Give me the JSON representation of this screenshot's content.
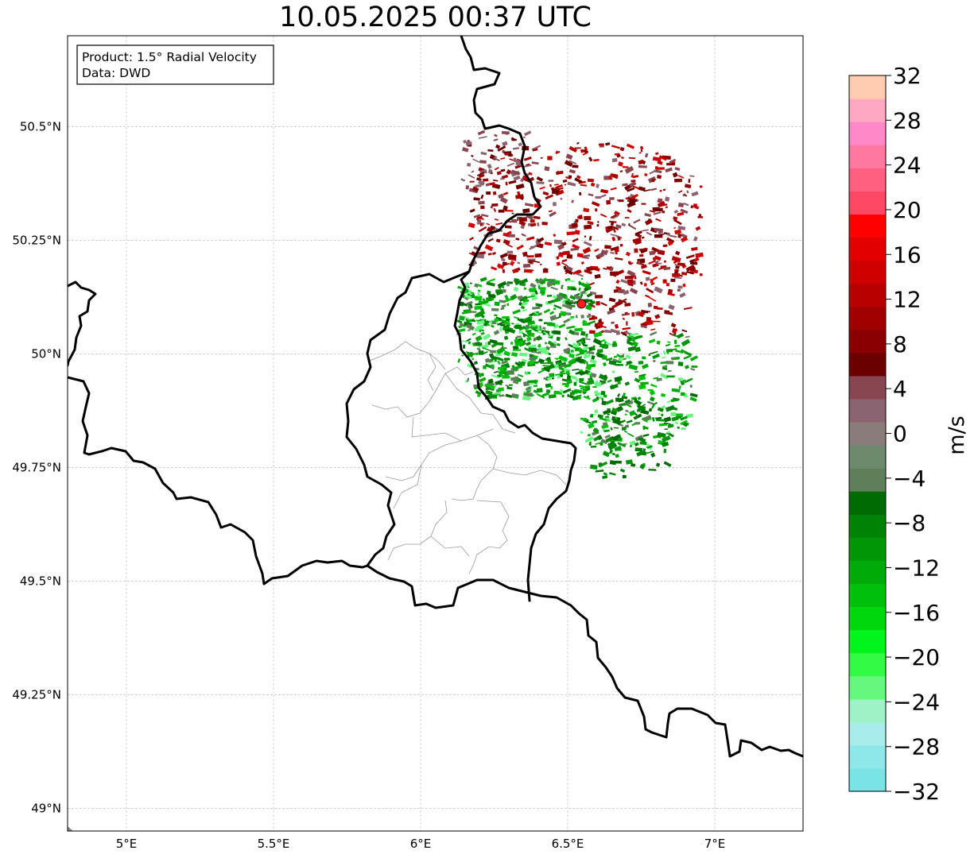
{
  "title": "10.05.2025 00:37 UTC",
  "infobox": {
    "line1": "Product: 1.5° Radial Velocity",
    "line2": "Data: DWD"
  },
  "map": {
    "lon_range": [
      4.8,
      7.3
    ],
    "lat_range": [
      48.95,
      50.7
    ],
    "lon_ticks": [
      {
        "value": 5.0,
        "label": "5°E"
      },
      {
        "value": 5.5,
        "label": "5.5°E"
      },
      {
        "value": 6.0,
        "label": "6°E"
      },
      {
        "value": 6.5,
        "label": "6.5°E"
      },
      {
        "value": 7.0,
        "label": "7°E"
      }
    ],
    "lat_ticks": [
      {
        "value": 49.0,
        "label": "49°N"
      },
      {
        "value": 49.25,
        "label": "49.25°N"
      },
      {
        "value": 49.5,
        "label": "49.5°N"
      },
      {
        "value": 49.75,
        "label": "49.75°N"
      },
      {
        "value": 50.0,
        "label": "50°N"
      },
      {
        "value": 50.25,
        "label": "50.25°N"
      },
      {
        "value": 50.5,
        "label": "50.5°N"
      }
    ],
    "radar_site": {
      "lon": 6.547,
      "lat": 50.11,
      "color": "#ff1a1a"
    }
  },
  "colorbar": {
    "label": "m/s",
    "min": -32,
    "max": 32,
    "ticks": [
      {
        "value": 32,
        "label": "32"
      },
      {
        "value": 28,
        "label": "28"
      },
      {
        "value": 24,
        "label": "24"
      },
      {
        "value": 20,
        "label": "20"
      },
      {
        "value": 16,
        "label": "16"
      },
      {
        "value": 12,
        "label": "12"
      },
      {
        "value": 8,
        "label": "8"
      },
      {
        "value": 4,
        "label": "4"
      },
      {
        "value": 0,
        "label": "0"
      },
      {
        "value": -4,
        "label": "−4"
      },
      {
        "value": -8,
        "label": "−8"
      },
      {
        "value": -12,
        "label": "−12"
      },
      {
        "value": -16,
        "label": "−16"
      },
      {
        "value": -20,
        "label": "−20"
      },
      {
        "value": -24,
        "label": "−24"
      },
      {
        "value": -28,
        "label": "−28"
      },
      {
        "value": -32,
        "label": "−32"
      }
    ],
    "colors_bottom_to_top": [
      "#7ae3e6",
      "#8ee8ea",
      "#a8ecec",
      "#9ef2c6",
      "#66f77e",
      "#33fa44",
      "#00f51a",
      "#00d80e",
      "#00c00a",
      "#00aa08",
      "#009606",
      "#008204",
      "#006b02",
      "#5f7f5a",
      "#6e8a6c",
      "#8a7c7a",
      "#8a6470",
      "#884650",
      "#6a0000",
      "#8a0000",
      "#a00000",
      "#b80000",
      "#d00000",
      "#e20000",
      "#ff0000",
      "#ff4864",
      "#ff6080",
      "#ff78a0",
      "#ff88c8",
      "#ffa8c4",
      "#ffccb0"
    ]
  }
}
